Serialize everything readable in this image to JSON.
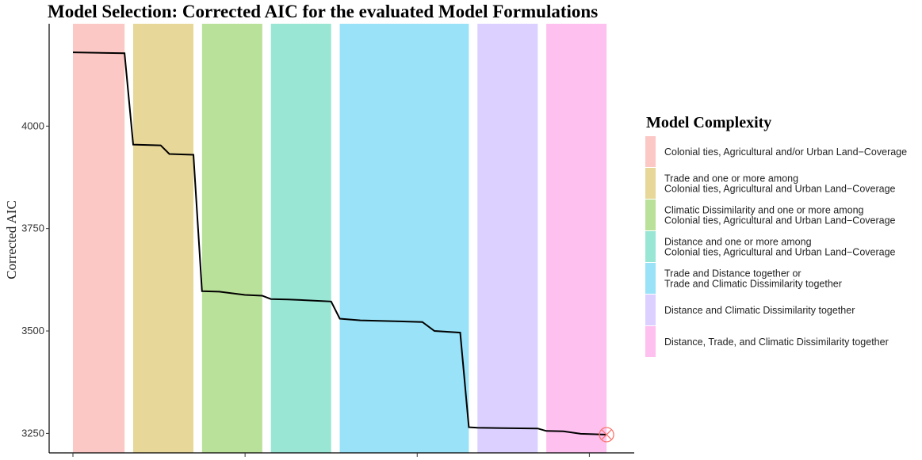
{
  "chart_data": {
    "type": "line",
    "title": "Model Selection: Corrected AIC for the evaluated Model Formulations",
    "xlabel": "",
    "ylabel": "Corrected AIC",
    "ylim": [
      3225,
      4250
    ],
    "xlim": [
      1,
      31
    ],
    "yticks": [
      3250,
      3500,
      3750,
      4000
    ],
    "grid": false,
    "legend_position": "right",
    "legend_title": "Model Complexity",
    "categories": [
      {
        "label": [
          "Colonial ties, Agricultural and/or Urban Land−Coverage"
        ],
        "color": "#F8766D",
        "x_range": [
          1.5,
          4.5
        ]
      },
      {
        "label": [
          "Trade and one or more among",
          "Colonial ties, Agricultural and Urban Land−Coverage"
        ],
        "color": "#C49A00",
        "x_range": [
          5,
          8.5
        ]
      },
      {
        "label": [
          "Climatic Dissimilarity and one or more among",
          "Colonial ties, Agricultural and Urban Land−Coverage"
        ],
        "color": "#53B400",
        "x_range": [
          9,
          12.5
        ]
      },
      {
        "label": [
          "Distance and one or more among",
          "Colonial ties, Agricultural and Urban Land−Coverage"
        ],
        "color": "#00C094",
        "x_range": [
          13,
          16.5
        ]
      },
      {
        "label": [
          "Trade and Distance together or",
          "Trade and Climatic Dissimilarity together"
        ],
        "color": "#00B6EB",
        "x_range": [
          17,
          24.5
        ]
      },
      {
        "label": [
          "Distance and Climatic Dissimilarity together"
        ],
        "color": "#A58AFF",
        "x_range": [
          25,
          28.5
        ]
      },
      {
        "label": [
          "Distance, Trade, and Climatic Dissimilarity together"
        ],
        "color": "#FB61D7",
        "x_range": [
          29,
          32.5
        ]
      }
    ],
    "series": [
      {
        "x": [
          1.5,
          4.5,
          5,
          6.6,
          7.1,
          8.5,
          9,
          10,
          11.5,
          12.5,
          13,
          14,
          15.5,
          16.5,
          17,
          18.2,
          20,
          21.8,
          22.5,
          24,
          24.5,
          25,
          26.5,
          28.5,
          29,
          30,
          31,
          32.5
        ],
        "y": [
          4180,
          4178,
          3955,
          3953,
          3932,
          3930,
          3597,
          3596,
          3588,
          3586,
          3578,
          3577,
          3574,
          3572,
          3530,
          3526,
          3524,
          3522,
          3500,
          3496,
          3265,
          3264,
          3263,
          3262,
          3256,
          3255,
          3249,
          3247
        ]
      }
    ],
    "annotations": [
      {
        "type": "selected-model-marker",
        "x": 32.5,
        "y": 3247,
        "color": "#F8766D"
      }
    ]
  }
}
